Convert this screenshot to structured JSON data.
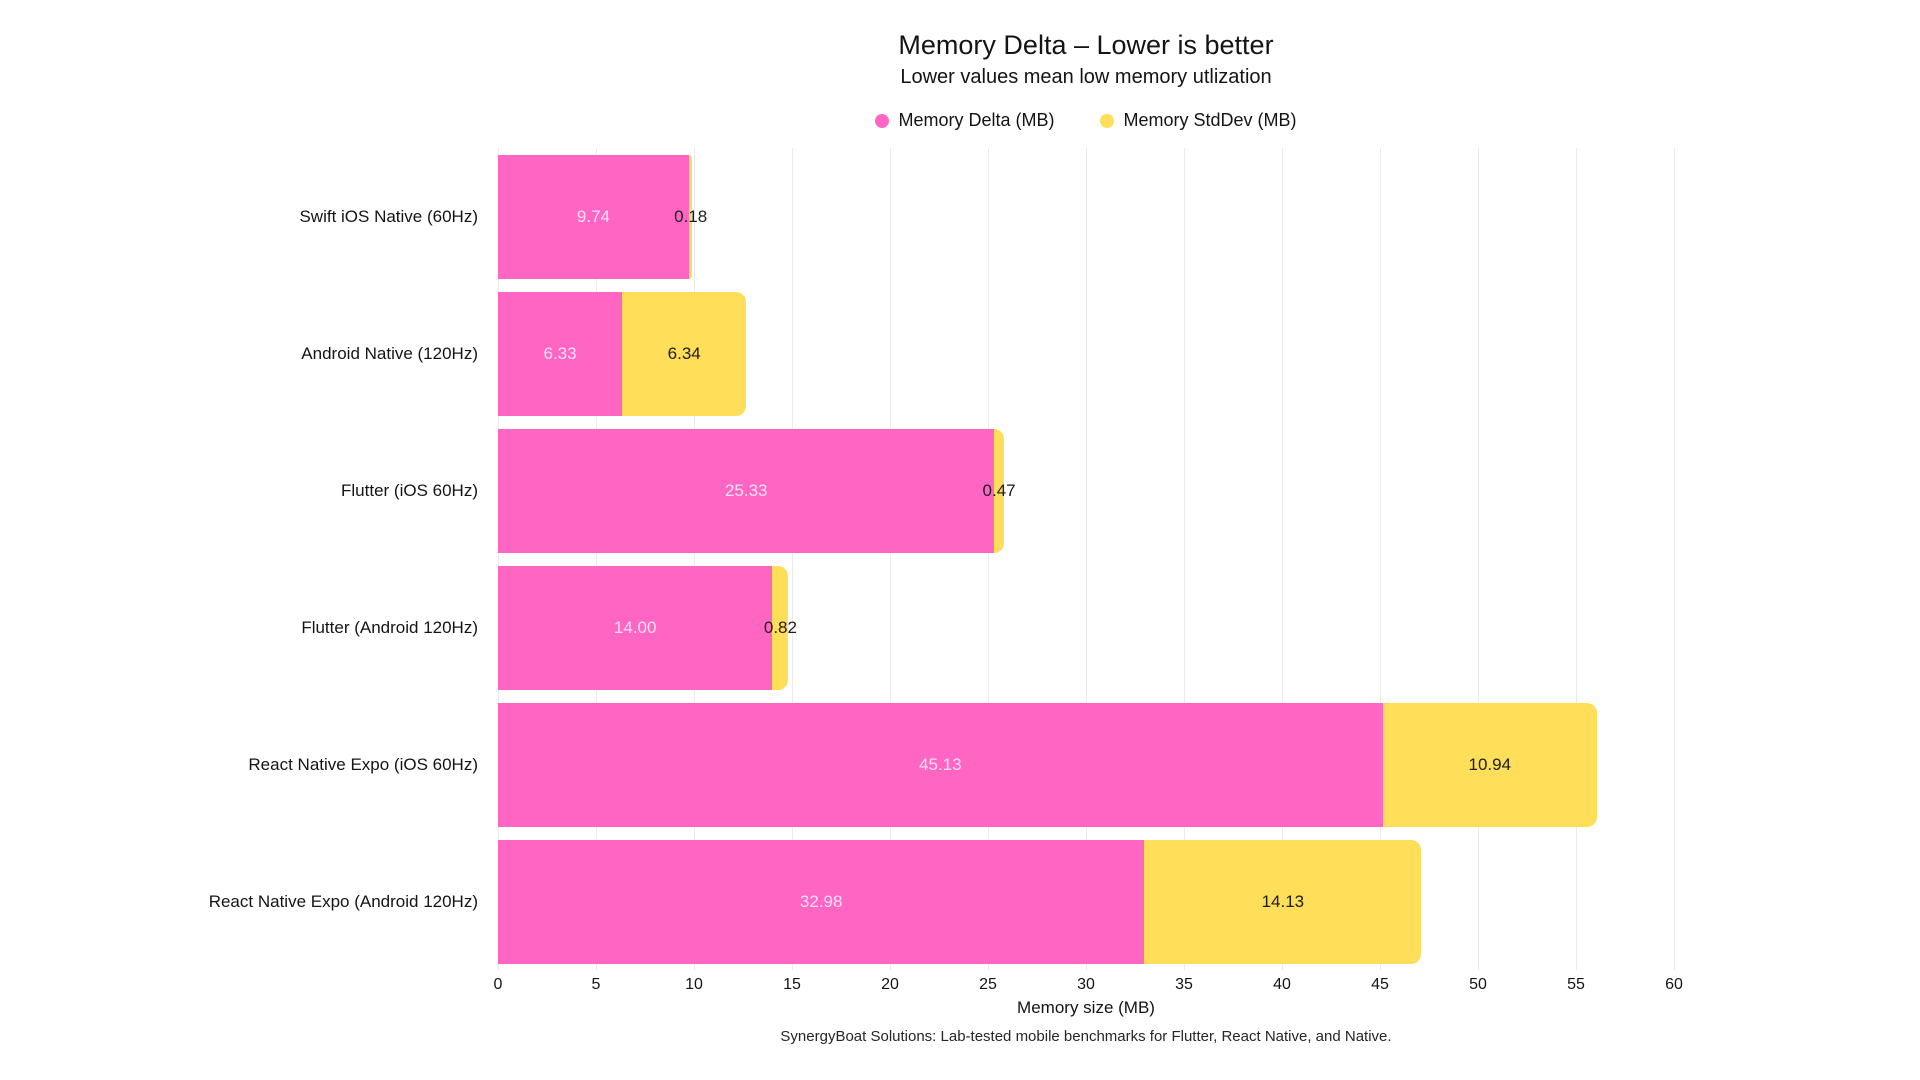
{
  "chart_data": {
    "type": "bar",
    "orientation": "horizontal",
    "stacked": true,
    "title": "Memory Delta – Lower is better",
    "subtitle": "Lower values mean low memory utlization",
    "categories": [
      "Swift iOS Native (60Hz)",
      "Android Native (120Hz)",
      "Flutter (iOS 60Hz)",
      "Flutter (Android 120Hz)",
      "React Native Expo (iOS 60Hz)",
      "React Native Expo (Android 120Hz)"
    ],
    "series": [
      {
        "name": "Memory Delta (MB)",
        "color": "#FF66C4",
        "label_color": "#ffdff3",
        "values": [
          9.74,
          6.33,
          25.33,
          14.0,
          45.13,
          32.98
        ]
      },
      {
        "name": "Memory StdDev (MB)",
        "color": "#FFDE59",
        "label_color": "#1d1d1d",
        "values": [
          0.18,
          6.34,
          0.47,
          0.82,
          10.94,
          14.13
        ]
      }
    ],
    "xlabel": "Memory size (MB)",
    "xlim": [
      0,
      60
    ],
    "xticks": [
      0,
      5,
      10,
      15,
      20,
      25,
      30,
      35,
      40,
      45,
      50,
      55,
      60
    ],
    "grid": true,
    "legend_position": "top",
    "value_decimals": 2
  },
  "footer": {
    "text": "SynergyBoat Solutions: Lab-tested mobile benchmarks for Flutter, React Native, and Native."
  }
}
